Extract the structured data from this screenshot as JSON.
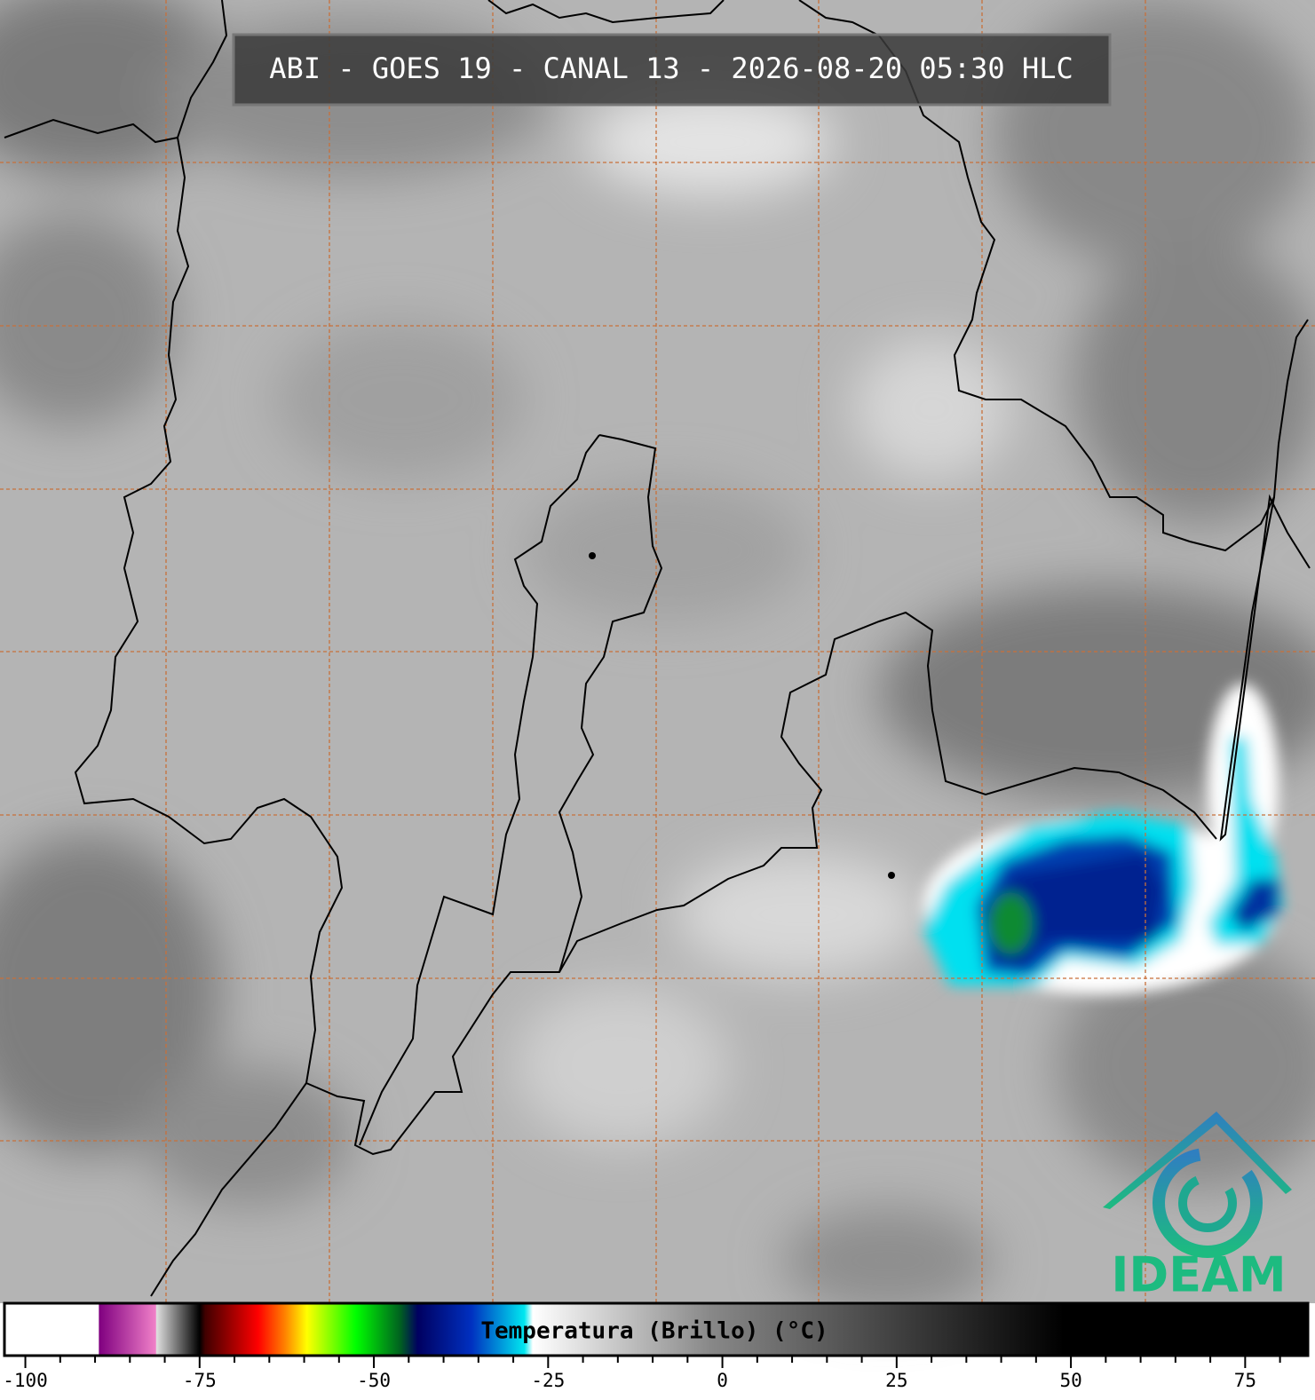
{
  "title": "ABI - GOES 19 - CANAL 13 - 2026-08-20 05:30 HLC",
  "logo": {
    "text": "IDEAM"
  },
  "colorbar": {
    "label": "Temperatura (Brillo) (°C)",
    "lim": [
      -103,
      84
    ],
    "ticks": [
      -100,
      -75,
      -50,
      -25,
      0,
      25,
      50,
      75
    ],
    "minor_ticks": [
      -95,
      -90,
      -85,
      -80,
      -70,
      -65,
      -60,
      -55,
      -45,
      -40,
      -35,
      -30,
      -20,
      -15,
      -10,
      -5,
      5,
      10,
      15,
      20,
      30,
      35,
      40,
      45,
      55,
      60,
      65,
      70,
      80
    ],
    "stops": [
      {
        "value": -103,
        "color": "#ffffff"
      },
      {
        "value": -89.5,
        "color": "#ffffff"
      },
      {
        "value": -89.4,
        "color": "#800080"
      },
      {
        "value": -81.3,
        "color": "#f080c8"
      },
      {
        "value": -81.2,
        "color": "#e0e0e0"
      },
      {
        "value": -75,
        "color": "#000000"
      },
      {
        "value": -74.2,
        "color": "#400000"
      },
      {
        "value": -66.6,
        "color": "#ff0000"
      },
      {
        "value": -62.8,
        "color": "#ff8000"
      },
      {
        "value": -59.6,
        "color": "#ffff00"
      },
      {
        "value": -52.6,
        "color": "#00ff00"
      },
      {
        "value": -46.2,
        "color": "#006020"
      },
      {
        "value": -43.7,
        "color": "#000060"
      },
      {
        "value": -36,
        "color": "#0030c0"
      },
      {
        "value": -28.4,
        "color": "#00e8f0"
      },
      {
        "value": -27.2,
        "color": "#ffffff"
      },
      {
        "value": -1.7,
        "color": "#888888"
      },
      {
        "value": 49,
        "color": "#000000"
      },
      {
        "value": 84,
        "color": "#000000"
      }
    ]
  }
}
